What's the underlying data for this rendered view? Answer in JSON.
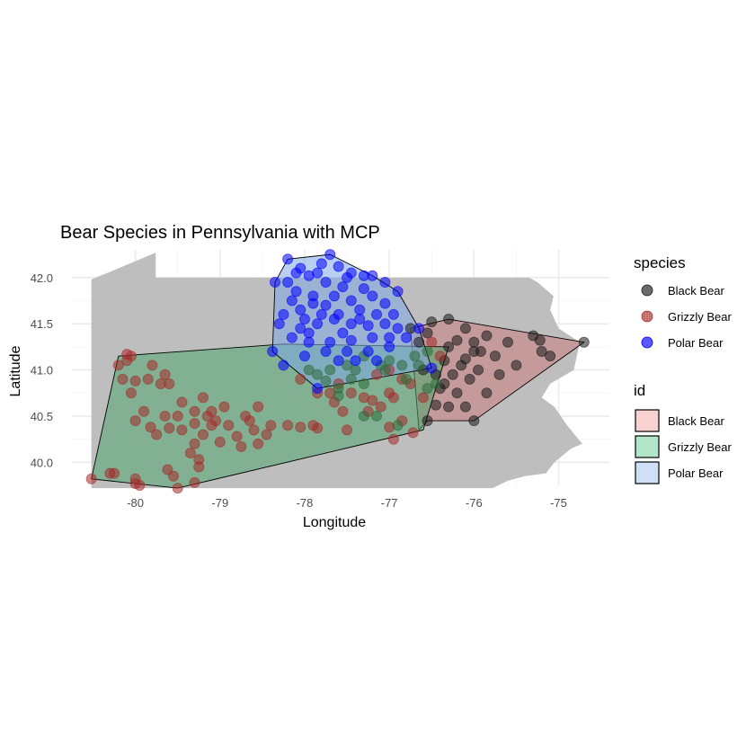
{
  "chart_data": {
    "type": "scatter",
    "title": "Bear Species in Pennsylvania with MCP",
    "xlabel": "Longitude",
    "ylabel": "Latitude",
    "xlim": [
      -80.75,
      -74.4
    ],
    "ylim": [
      39.75,
      42.3
    ],
    "x_ticks": [
      -80,
      -79,
      -78,
      -77,
      -76,
      -75
    ],
    "x_tick_labels": [
      "-80",
      "-79",
      "-78",
      "-77",
      "-76",
      "-75"
    ],
    "y_ticks": [
      40.0,
      40.5,
      41.0,
      41.5,
      42.0
    ],
    "y_tick_labels": [
      "40.0",
      "40.5",
      "41.0",
      "41.5",
      "42.0"
    ],
    "grid": true,
    "legend_position": "right",
    "basemap": {
      "name": "Pennsylvania",
      "color": "#bebebe",
      "outline": [
        [
          -80.52,
          39.72
        ],
        [
          -75.78,
          39.72
        ],
        [
          -75.6,
          39.8
        ],
        [
          -75.4,
          39.85
        ],
        [
          -75.15,
          39.88
        ],
        [
          -75.05,
          40.0
        ],
        [
          -74.85,
          40.15
        ],
        [
          -74.72,
          40.2
        ],
        [
          -74.9,
          40.4
        ],
        [
          -75.05,
          40.6
        ],
        [
          -75.2,
          40.7
        ],
        [
          -75.1,
          40.85
        ],
        [
          -74.82,
          41.0
        ],
        [
          -74.75,
          41.3
        ],
        [
          -75.0,
          41.45
        ],
        [
          -75.1,
          41.65
        ],
        [
          -75.06,
          41.8
        ],
        [
          -75.25,
          41.95
        ],
        [
          -75.35,
          42.0
        ],
        [
          -79.76,
          42.0
        ],
        [
          -79.76,
          42.27
        ],
        [
          -80.2,
          42.1
        ],
        [
          -80.52,
          41.98
        ]
      ]
    },
    "legends": [
      {
        "title": "species",
        "kind": "point",
        "entries": [
          {
            "label": "Black Bear",
            "color": "#1a1a1a"
          },
          {
            "label": "Grizzly Bear",
            "color": "#a52a2a"
          },
          {
            "label": "Polar Bear",
            "color": "#0000ff"
          }
        ]
      },
      {
        "title": "id",
        "kind": "fill",
        "entries": [
          {
            "label": "Black Bear",
            "color": "#f8d1d1"
          },
          {
            "label": "Grizzly Bear",
            "color": "#b3e5c8"
          },
          {
            "label": "Polar Bear",
            "color": "#cfdff5"
          }
        ]
      }
    ],
    "mcp": [
      {
        "id": "Black Bear",
        "fill": "#c87b7b",
        "hull": [
          [
            -76.55,
            40.45
          ],
          [
            -76.0,
            40.45
          ],
          [
            -74.7,
            41.3
          ],
          [
            -76.3,
            41.55
          ],
          [
            -76.75,
            41.45
          ],
          [
            -76.65,
            40.35
          ]
        ]
      },
      {
        "id": "Grizzly Bear",
        "fill": "#4ea66e",
        "hull": [
          [
            -80.52,
            39.82
          ],
          [
            -79.5,
            39.72
          ],
          [
            -76.6,
            40.35
          ],
          [
            -76.3,
            41.25
          ],
          [
            -78.25,
            41.28
          ],
          [
            -80.2,
            41.15
          ]
        ]
      },
      {
        "id": "Polar Bear",
        "fill": "#7fa8e6",
        "hull": [
          [
            -78.38,
            41.2
          ],
          [
            -77.85,
            40.8
          ],
          [
            -76.5,
            41.02
          ],
          [
            -76.65,
            41.45
          ],
          [
            -76.9,
            41.85
          ],
          [
            -77.2,
            42.02
          ],
          [
            -77.7,
            42.25
          ],
          [
            -78.2,
            42.2
          ],
          [
            -78.35,
            41.95
          ]
        ]
      }
    ],
    "series": [
      {
        "name": "Black Bear",
        "color": "#1a1a1a",
        "points": [
          [
            -74.7,
            41.3
          ],
          [
            -75.3,
            41.37
          ],
          [
            -75.22,
            41.32
          ],
          [
            -75.6,
            41.3
          ],
          [
            -75.85,
            41.37
          ],
          [
            -75.92,
            41.2
          ],
          [
            -76.0,
            41.3
          ],
          [
            -76.1,
            41.45
          ],
          [
            -76.3,
            41.55
          ],
          [
            -76.5,
            41.52
          ],
          [
            -76.2,
            41.32
          ],
          [
            -76.3,
            41.25
          ],
          [
            -76.35,
            41.1
          ],
          [
            -76.15,
            41.05
          ],
          [
            -76.1,
            41.12
          ],
          [
            -75.95,
            41.0
          ],
          [
            -76.05,
            40.9
          ],
          [
            -76.25,
            40.95
          ],
          [
            -76.4,
            40.8
          ],
          [
            -76.2,
            40.75
          ],
          [
            -76.3,
            40.6
          ],
          [
            -76.45,
            40.62
          ],
          [
            -76.55,
            40.45
          ],
          [
            -76.0,
            40.45
          ],
          [
            -76.1,
            40.6
          ],
          [
            -75.85,
            40.75
          ],
          [
            -75.5,
            41.05
          ],
          [
            -75.7,
            40.95
          ],
          [
            -76.6,
            41.0
          ],
          [
            -76.45,
            40.95
          ],
          [
            -76.65,
            41.3
          ],
          [
            -76.75,
            41.45
          ],
          [
            -76.55,
            41.4
          ],
          [
            -75.2,
            41.2
          ],
          [
            -75.1,
            41.15
          ],
          [
            -76.0,
            41.2
          ],
          [
            -75.75,
            41.15
          ],
          [
            -76.35,
            40.85
          ]
        ]
      },
      {
        "name": "Grizzly Bear",
        "color": "#a52a2a",
        "points": [
          [
            -80.52,
            39.82
          ],
          [
            -80.25,
            39.88
          ],
          [
            -80.3,
            39.88
          ],
          [
            -80.0,
            39.82
          ],
          [
            -79.95,
            39.75
          ],
          [
            -80.0,
            39.77
          ],
          [
            -79.5,
            39.72
          ],
          [
            -79.3,
            39.78
          ],
          [
            -79.55,
            39.85
          ],
          [
            -79.62,
            39.92
          ],
          [
            -79.25,
            39.95
          ],
          [
            -79.25,
            40.03
          ],
          [
            -79.3,
            40.2
          ],
          [
            -79.0,
            40.22
          ],
          [
            -78.75,
            40.17
          ],
          [
            -78.8,
            40.28
          ],
          [
            -78.55,
            40.2
          ],
          [
            -78.6,
            40.35
          ],
          [
            -78.45,
            40.3
          ],
          [
            -78.2,
            40.4
          ],
          [
            -78.05,
            40.38
          ],
          [
            -77.85,
            40.37
          ],
          [
            -77.5,
            40.35
          ],
          [
            -77.0,
            40.38
          ],
          [
            -76.95,
            40.25
          ],
          [
            -76.85,
            40.45
          ],
          [
            -76.72,
            40.32
          ],
          [
            -77.25,
            40.55
          ],
          [
            -77.2,
            40.67
          ],
          [
            -76.95,
            40.7
          ],
          [
            -77.45,
            40.75
          ],
          [
            -77.6,
            40.85
          ],
          [
            -77.85,
            40.75
          ],
          [
            -78.05,
            40.9
          ],
          [
            -77.65,
            40.65
          ],
          [
            -79.5,
            40.5
          ],
          [
            -79.45,
            40.35
          ],
          [
            -79.3,
            40.42
          ],
          [
            -79.15,
            40.5
          ],
          [
            -78.95,
            40.6
          ],
          [
            -79.05,
            40.45
          ],
          [
            -78.9,
            40.4
          ],
          [
            -78.7,
            40.5
          ],
          [
            -79.2,
            40.3
          ],
          [
            -78.55,
            40.6
          ],
          [
            -79.6,
            40.37
          ],
          [
            -79.75,
            40.3
          ],
          [
            -79.82,
            40.38
          ],
          [
            -79.65,
            40.5
          ],
          [
            -79.9,
            40.55
          ],
          [
            -80.0,
            40.45
          ],
          [
            -80.15,
            40.9
          ],
          [
            -80.1,
            41.1
          ],
          [
            -80.1,
            41.17
          ],
          [
            -80.05,
            41.15
          ],
          [
            -80.2,
            41.05
          ],
          [
            -79.8,
            41.05
          ],
          [
            -79.85,
            40.9
          ],
          [
            -79.7,
            40.85
          ],
          [
            -79.6,
            40.85
          ],
          [
            -79.45,
            40.65
          ],
          [
            -79.65,
            40.95
          ],
          [
            -80.0,
            40.88
          ],
          [
            -80.05,
            40.75
          ],
          [
            -79.3,
            40.55
          ],
          [
            -78.65,
            40.45
          ],
          [
            -79.1,
            40.55
          ],
          [
            -77.3,
            40.7
          ],
          [
            -77.1,
            40.6
          ],
          [
            -77.55,
            40.55
          ],
          [
            -76.85,
            40.9
          ],
          [
            -77.0,
            41.0
          ],
          [
            -77.15,
            40.95
          ],
          [
            -76.75,
            40.85
          ],
          [
            -76.6,
            40.7
          ],
          [
            -76.4,
            41.15
          ],
          [
            -76.5,
            41.3
          ],
          [
            -77.0,
            40.75
          ],
          [
            -77.7,
            40.75
          ],
          [
            -79.35,
            40.1
          ],
          [
            -78.4,
            40.4
          ],
          [
            -77.9,
            40.4
          ],
          [
            -79.1,
            40.4
          ],
          [
            -79.2,
            40.7
          ]
        ]
      },
      {
        "name": "Grizzly Bear (green)",
        "color": "#2e6b3a",
        "points": [
          [
            -77.85,
            40.95
          ],
          [
            -77.7,
            41.0
          ],
          [
            -77.5,
            41.05
          ],
          [
            -77.45,
            40.9
          ],
          [
            -77.6,
            40.8
          ],
          [
            -77.3,
            41.15
          ],
          [
            -77.05,
            41.0
          ],
          [
            -76.85,
            41.05
          ],
          [
            -76.7,
            41.15
          ],
          [
            -76.55,
            41.2
          ],
          [
            -76.8,
            40.9
          ],
          [
            -77.3,
            40.85
          ],
          [
            -77.6,
            40.72
          ],
          [
            -77.15,
            40.5
          ],
          [
            -76.9,
            40.4
          ],
          [
            -77.3,
            40.5
          ],
          [
            -76.45,
            40.85
          ],
          [
            -76.55,
            40.8
          ],
          [
            -77.95,
            41.0
          ],
          [
            -77.75,
            40.88
          ],
          [
            -77.4,
            41.0
          ],
          [
            -77.1,
            41.05
          ],
          [
            -77.0,
            41.1
          ],
          [
            -76.65,
            41.05
          ]
        ]
      },
      {
        "name": "Polar Bear",
        "color": "#0000ff",
        "points": [
          [
            -77.7,
            42.25
          ],
          [
            -78.2,
            42.2
          ],
          [
            -77.8,
            42.15
          ],
          [
            -78.05,
            42.1
          ],
          [
            -77.6,
            42.12
          ],
          [
            -77.5,
            42.0
          ],
          [
            -77.3,
            42.02
          ],
          [
            -77.2,
            42.02
          ],
          [
            -77.05,
            41.95
          ],
          [
            -76.9,
            41.85
          ],
          [
            -77.3,
            41.88
          ],
          [
            -77.55,
            41.9
          ],
          [
            -77.75,
            41.95
          ],
          [
            -77.95,
            42.02
          ],
          [
            -78.2,
            41.95
          ],
          [
            -78.35,
            41.95
          ],
          [
            -78.1,
            41.85
          ],
          [
            -77.9,
            41.8
          ],
          [
            -77.65,
            41.8
          ],
          [
            -77.45,
            41.75
          ],
          [
            -77.2,
            41.8
          ],
          [
            -77.05,
            41.72
          ],
          [
            -77.35,
            41.65
          ],
          [
            -77.6,
            41.6
          ],
          [
            -77.8,
            41.6
          ],
          [
            -78.05,
            41.65
          ],
          [
            -78.25,
            41.6
          ],
          [
            -78.3,
            41.5
          ],
          [
            -78.05,
            41.45
          ],
          [
            -77.85,
            41.5
          ],
          [
            -77.65,
            41.55
          ],
          [
            -77.45,
            41.5
          ],
          [
            -77.25,
            41.48
          ],
          [
            -77.05,
            41.5
          ],
          [
            -76.9,
            41.45
          ],
          [
            -76.8,
            41.35
          ],
          [
            -77.0,
            41.35
          ],
          [
            -77.2,
            41.35
          ],
          [
            -77.45,
            41.32
          ],
          [
            -77.7,
            41.3
          ],
          [
            -77.95,
            41.3
          ],
          [
            -78.15,
            41.35
          ],
          [
            -78.38,
            41.2
          ],
          [
            -78.0,
            41.15
          ],
          [
            -77.75,
            41.2
          ],
          [
            -77.5,
            41.2
          ],
          [
            -77.25,
            41.2
          ],
          [
            -77.0,
            41.25
          ],
          [
            -76.65,
            41.45
          ],
          [
            -76.5,
            41.02
          ],
          [
            -77.85,
            40.8
          ],
          [
            -77.95,
            41.4
          ],
          [
            -77.55,
            41.4
          ],
          [
            -77.35,
            41.55
          ],
          [
            -77.9,
            41.72
          ],
          [
            -78.15,
            41.75
          ],
          [
            -77.75,
            41.7
          ],
          [
            -77.15,
            41.6
          ],
          [
            -76.95,
            41.6
          ],
          [
            -78.0,
            41.55
          ],
          [
            -77.6,
            41.1
          ],
          [
            -77.4,
            41.1
          ],
          [
            -78.25,
            41.05
          ],
          [
            -77.15,
            41.1
          ],
          [
            -77.85,
            42.05
          ],
          [
            -77.45,
            42.05
          ],
          [
            -78.1,
            42.05
          ]
        ]
      }
    ]
  }
}
